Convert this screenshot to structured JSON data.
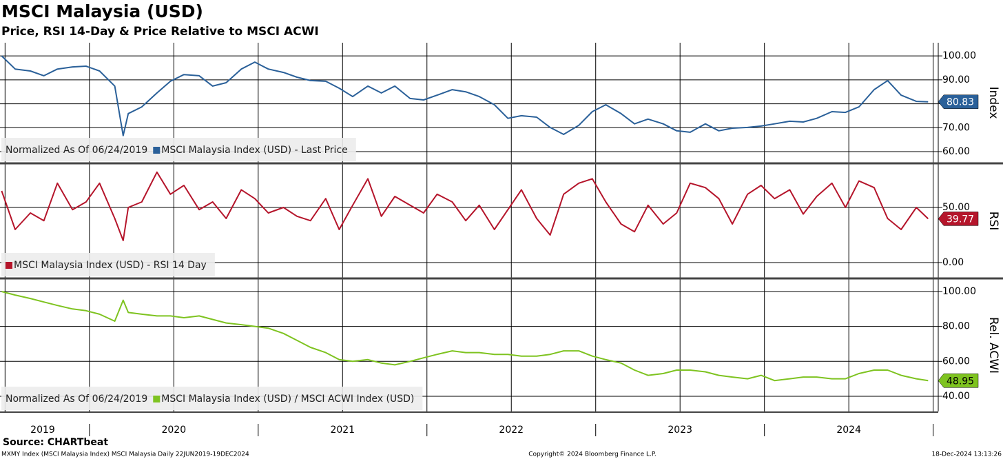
{
  "title": "MSCI Malaysia (USD)",
  "subtitle": "Price, RSI 14-Day & Price Relative to MSCI ACWI",
  "source": "Source: CHARTbeat",
  "footer": {
    "left": "MXMY Index (MSCI Malaysia Index) MSCI Malaysia  Daily 22JUN2019-19DEC2024",
    "center": "Copyright© 2024 Bloomberg Finance L.P.",
    "right": "18-Dec-2024 13:13:26"
  },
  "chart_data": [
    {
      "type": "line",
      "ylabel": "Index",
      "note": "Normalized As Of 06/24/2019",
      "x": [
        2019.48,
        2019.56,
        2019.65,
        2019.73,
        2019.81,
        2019.9,
        2019.98,
        2020.06,
        2020.15,
        2020.2,
        2020.23,
        2020.31,
        2020.4,
        2020.48,
        2020.56,
        2020.65,
        2020.73,
        2020.81,
        2020.9,
        2020.98,
        2021.06,
        2021.15,
        2021.23,
        2021.31,
        2021.4,
        2021.48,
        2021.56,
        2021.65,
        2021.73,
        2021.81,
        2021.9,
        2021.98,
        2022.06,
        2022.15,
        2022.23,
        2022.31,
        2022.4,
        2022.48,
        2022.56,
        2022.65,
        2022.73,
        2022.81,
        2022.9,
        2022.98,
        2023.06,
        2023.15,
        2023.23,
        2023.31,
        2023.4,
        2023.48,
        2023.56,
        2023.65,
        2023.73,
        2023.81,
        2023.9,
        2023.98,
        2024.06,
        2024.15,
        2024.23,
        2024.31,
        2024.4,
        2024.48,
        2024.56,
        2024.65,
        2024.73,
        2024.81,
        2024.9,
        2024.97
      ],
      "series": [
        {
          "name": "MSCI Malaysia Index (USD) - Last Price",
          "color": "#2a6099",
          "values": [
            100,
            94.5,
            93.7,
            91.7,
            94.5,
            95.4,
            95.7,
            93.7,
            87.4,
            66.7,
            75.9,
            78.7,
            84.5,
            89.4,
            92.2,
            91.7,
            87.4,
            88.8,
            94.5,
            97.4,
            94.5,
            93.1,
            91.1,
            89.7,
            89.4,
            86.5,
            83,
            87.4,
            84.5,
            87.4,
            82.2,
            81.6,
            83.6,
            85.9,
            85,
            83,
            79.6,
            73.9,
            75,
            74.4,
            70.1,
            67.2,
            71,
            76.7,
            79.6,
            75.9,
            71.6,
            73.6,
            71.6,
            68.7,
            68.1,
            71.6,
            68.7,
            69.8,
            70.1,
            70.7,
            71.6,
            72.7,
            72.4,
            73.9,
            76.7,
            76.4,
            78.7,
            85.9,
            89.7,
            83.6,
            81,
            80.83
          ]
        }
      ],
      "xlim": [
        2019.47,
        2025.03
      ],
      "ylim": [
        55.4,
        105.5
      ],
      "yticks": [
        {
          "value": 60,
          "label": "60.00"
        },
        {
          "value": 70,
          "label": "70.00"
        },
        {
          "value": 80,
          "label": "80.00"
        },
        {
          "value": 90,
          "label": "90.00"
        },
        {
          "value": 100,
          "label": "100.00"
        }
      ]
    },
    {
      "type": "line",
      "ylabel": "RSI",
      "x": [
        2019.48,
        2019.56,
        2019.65,
        2019.73,
        2019.81,
        2019.9,
        2019.98,
        2020.06,
        2020.15,
        2020.2,
        2020.23,
        2020.31,
        2020.4,
        2020.48,
        2020.56,
        2020.65,
        2020.73,
        2020.81,
        2020.9,
        2020.98,
        2021.06,
        2021.15,
        2021.23,
        2021.31,
        2021.4,
        2021.48,
        2021.56,
        2021.65,
        2021.73,
        2021.81,
        2021.9,
        2021.98,
        2022.06,
        2022.15,
        2022.23,
        2022.31,
        2022.4,
        2022.48,
        2022.56,
        2022.65,
        2022.73,
        2022.81,
        2022.9,
        2022.98,
        2023.06,
        2023.15,
        2023.23,
        2023.31,
        2023.4,
        2023.48,
        2023.56,
        2023.65,
        2023.73,
        2023.81,
        2023.9,
        2023.98,
        2024.06,
        2024.15,
        2024.23,
        2024.31,
        2024.4,
        2024.48,
        2024.56,
        2024.65,
        2024.73,
        2024.81,
        2024.9,
        2024.97
      ],
      "series": [
        {
          "name": "MSCI Malaysia Index (USD) - RSI 14 Day",
          "color": "#b5152b",
          "values": [
            65,
            30,
            45,
            38,
            72,
            48,
            55,
            72,
            40,
            20,
            50,
            55,
            82,
            62,
            70,
            48,
            55,
            40,
            66,
            58,
            45,
            50,
            42,
            38,
            58,
            30,
            52,
            76,
            42,
            60,
            52,
            45,
            62,
            55,
            38,
            52,
            30,
            48,
            66,
            40,
            25,
            62,
            72,
            76,
            55,
            35,
            28,
            52,
            35,
            45,
            72,
            68,
            58,
            35,
            62,
            70,
            58,
            66,
            44,
            60,
            72,
            50,
            74,
            68,
            40,
            30,
            50,
            39.77
          ]
        }
      ],
      "xlim": [
        2019.47,
        2025.03
      ],
      "ylim": [
        -13.75,
        89.4
      ],
      "yticks": [
        {
          "value": 0,
          "label": "0.00"
        },
        {
          "value": 50,
          "label": "50.00"
        }
      ]
    },
    {
      "type": "line",
      "ylabel": "Rel. ACWI",
      "note": "Normalized As Of 06/24/2019",
      "x": [
        2019.48,
        2019.56,
        2019.65,
        2019.73,
        2019.81,
        2019.9,
        2019.98,
        2020.06,
        2020.15,
        2020.2,
        2020.23,
        2020.31,
        2020.4,
        2020.48,
        2020.56,
        2020.65,
        2020.73,
        2020.81,
        2020.9,
        2020.98,
        2021.06,
        2021.15,
        2021.23,
        2021.31,
        2021.4,
        2021.48,
        2021.56,
        2021.65,
        2021.73,
        2021.81,
        2021.9,
        2021.98,
        2022.06,
        2022.15,
        2022.23,
        2022.31,
        2022.4,
        2022.48,
        2022.56,
        2022.65,
        2022.73,
        2022.81,
        2022.9,
        2022.98,
        2023.06,
        2023.15,
        2023.23,
        2023.31,
        2023.4,
        2023.48,
        2023.56,
        2023.65,
        2023.73,
        2023.81,
        2023.9,
        2023.98,
        2024.06,
        2024.15,
        2024.23,
        2024.31,
        2024.4,
        2024.48,
        2024.56,
        2024.65,
        2024.73,
        2024.81,
        2024.9,
        2024.97
      ],
      "series": [
        {
          "name": "MSCI Malaysia Index (USD) / MSCI ACWI Index (USD)",
          "color": "#7ec320",
          "values": [
            100,
            98,
            96,
            94,
            92,
            90,
            89,
            87,
            83,
            95,
            88,
            87,
            86,
            86,
            85,
            86,
            84,
            82,
            81,
            80,
            79,
            76,
            72,
            68,
            65,
            61,
            60,
            61,
            59,
            58,
            60,
            62,
            64,
            66,
            65,
            65,
            64,
            64,
            63,
            63,
            64,
            66,
            66,
            63,
            61,
            59,
            55,
            52,
            53,
            55,
            55,
            54,
            52,
            51,
            50,
            52,
            49,
            50,
            51,
            51,
            50,
            50,
            53,
            55,
            55,
            52,
            50,
            48.95
          ]
        }
      ],
      "xlim": [
        2019.47,
        2025.03
      ],
      "ylim": [
        31.3,
        107.1
      ],
      "yticks": [
        {
          "value": 40,
          "label": "40.00"
        },
        {
          "value": 60,
          "label": "60.00"
        },
        {
          "value": 80,
          "label": "80.00"
        },
        {
          "value": 100,
          "label": "100.00"
        }
      ],
      "xticks": [
        {
          "value": 2019.5,
          "label": "2019"
        },
        {
          "value": 2020.5,
          "label": "2020"
        },
        {
          "value": 2021.5,
          "label": "2021"
        },
        {
          "value": 2022.5,
          "label": "2022"
        },
        {
          "value": 2023.5,
          "label": "2023"
        },
        {
          "value": 2024.5,
          "label": "2024"
        }
      ],
      "xminor_ticks": [
        2020,
        2021,
        2022,
        2023,
        2024,
        2025
      ]
    }
  ]
}
